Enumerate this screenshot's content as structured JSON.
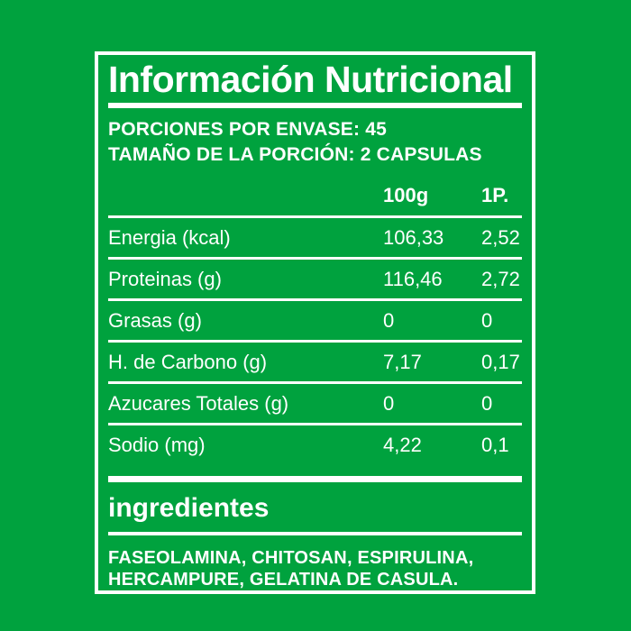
{
  "colors": {
    "background": "#00A23E",
    "panel_border": "#FFFFFF",
    "text": "#FFFFFF"
  },
  "title": "Información Nutricional",
  "serving_info": {
    "porciones_label": "PORCIONES POR ENVASE:",
    "porciones_value": "45",
    "tamano_label": "TAMAÑO DE LA PORCIÓN:",
    "tamano_value": "2 CAPSULAS"
  },
  "nutrition_table": {
    "columns": [
      "100g",
      "1P."
    ],
    "rows": [
      {
        "label": "Energia (kcal)",
        "per_100g": "106,33",
        "per_serving": "2,52"
      },
      {
        "label": "Proteinas (g)",
        "per_100g": "116,46",
        "per_serving": "2,72"
      },
      {
        "label": "Grasas (g)",
        "per_100g": "0",
        "per_serving": "0"
      },
      {
        "label": "H. de Carbono (g)",
        "per_100g": "7,17",
        "per_serving": "0,17"
      },
      {
        "label": "Azucares Totales (g)",
        "per_100g": "0",
        "per_serving": "0"
      },
      {
        "label": "Sodio (mg)",
        "per_100g": "4,22",
        "per_serving": "0,1"
      }
    ]
  },
  "ingredients": {
    "heading": "ingredientes",
    "lines": [
      "FASEOLAMINA, CHITOSAN, ESPIRULINA,",
      "HERCAMPURE, GELATINA DE CASULA."
    ]
  }
}
